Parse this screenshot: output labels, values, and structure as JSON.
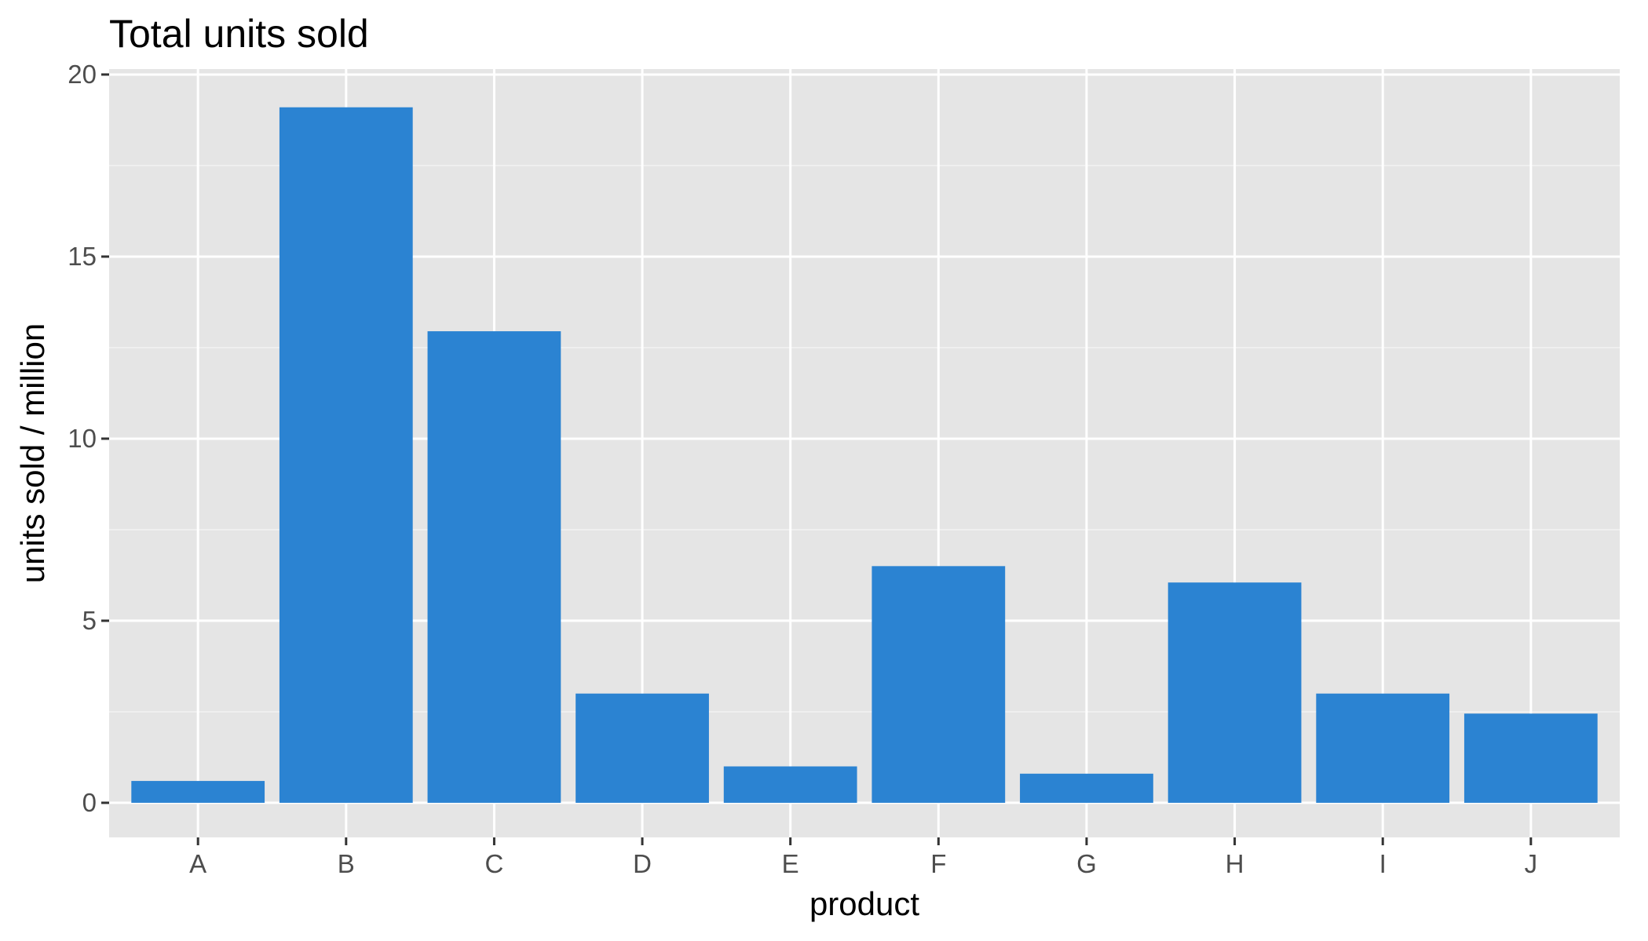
{
  "chart_data": {
    "type": "bar",
    "title": "Total units sold",
    "xlabel": "product",
    "ylabel": "units sold / million",
    "categories": [
      "A",
      "B",
      "C",
      "D",
      "E",
      "F",
      "G",
      "H",
      "I",
      "J"
    ],
    "values": [
      0.6,
      19.1,
      12.95,
      3.0,
      1.0,
      6.5,
      0.8,
      6.05,
      3.0,
      2.45
    ],
    "ylim": [
      -0.95,
      20.15
    ],
    "yticks": [
      0,
      5,
      10,
      15,
      20
    ],
    "ytick_labels": [
      "0",
      "5",
      "10",
      "15",
      "20"
    ],
    "grid": true,
    "colors": {
      "bar": "#2b83d2",
      "panel_background": "#e5e5e5",
      "grid_major": "#ffffff",
      "grid_minor": "#f2f2f2",
      "tick_label": "#4d4d4d",
      "text": "#000000"
    }
  }
}
